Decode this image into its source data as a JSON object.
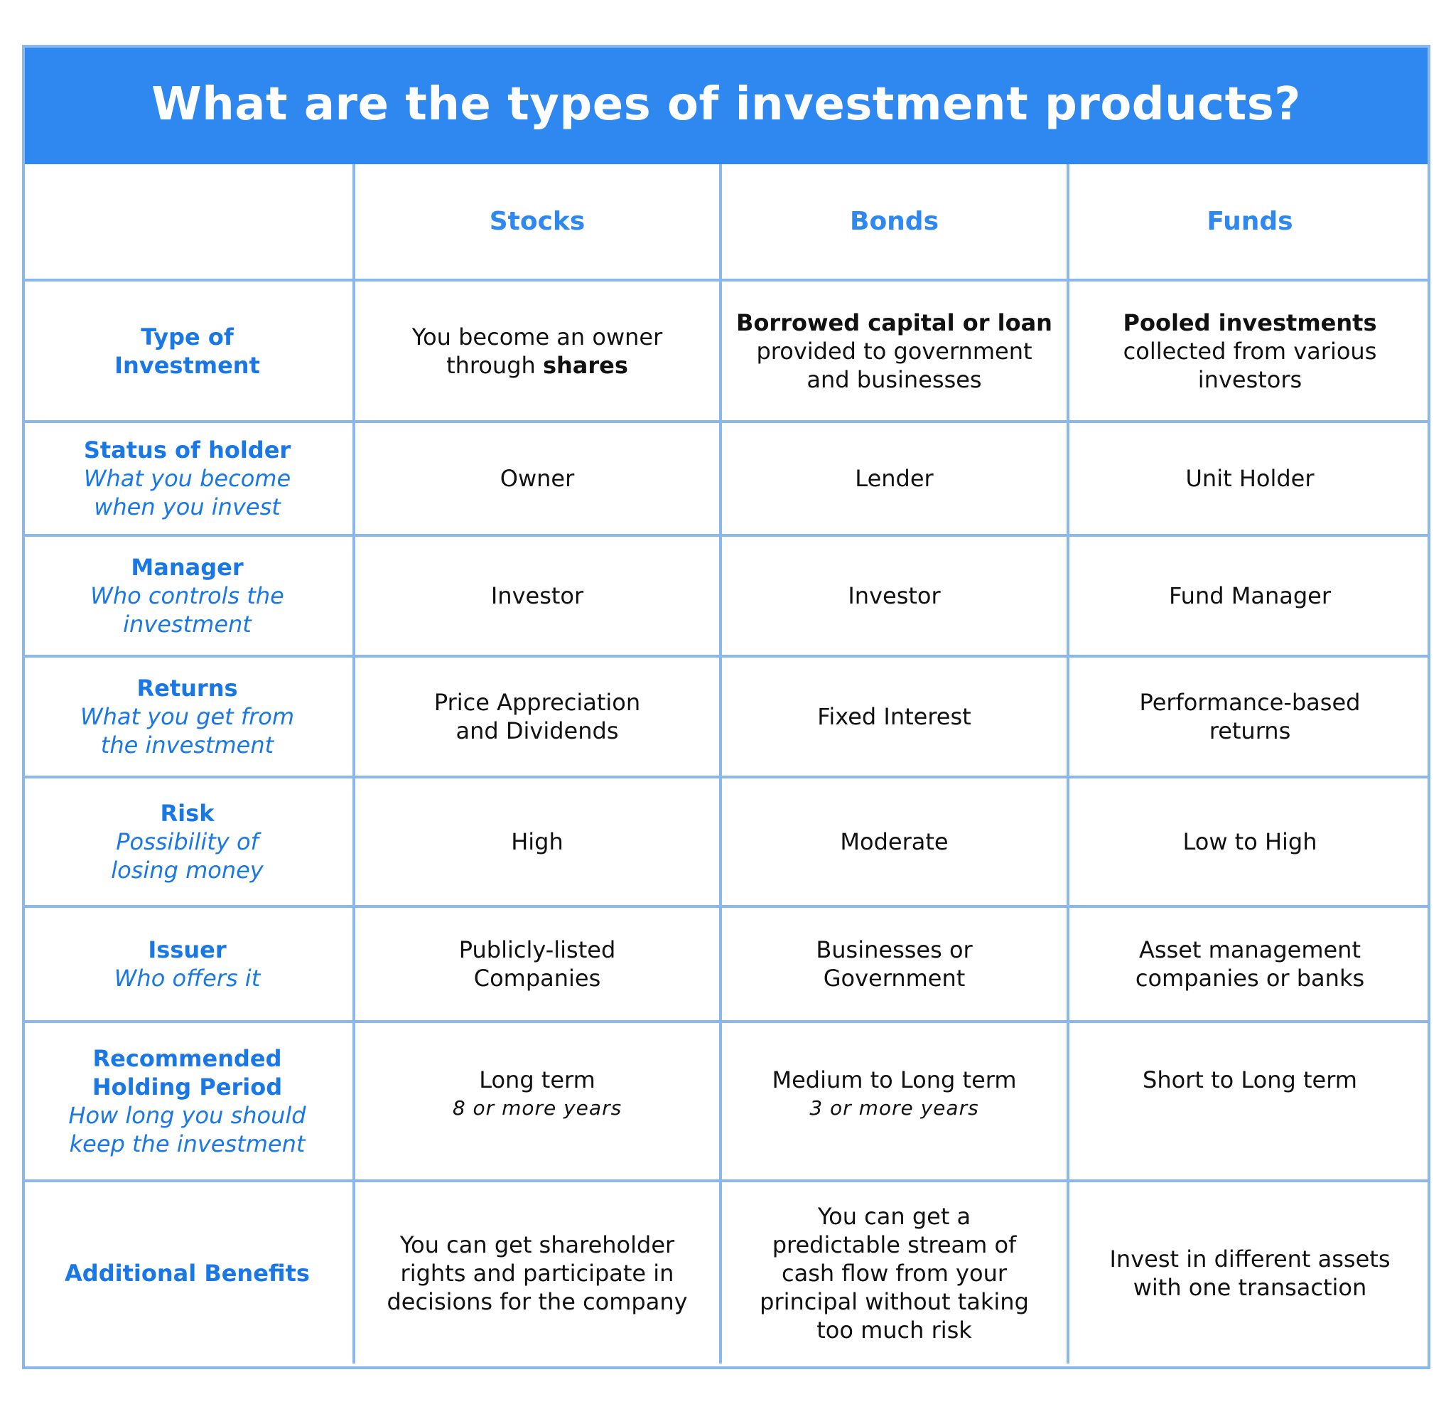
{
  "title": "What are the types of investment products?",
  "columns": [
    "Stocks",
    "Bonds",
    "Funds"
  ],
  "rows": [
    {
      "label": "Type of Investment",
      "sub": "",
      "cells": [
        {
          "pre": "You become an owner through ",
          "bold": "shares",
          "post": ""
        },
        {
          "bold": "Borrowed capital or loan",
          "post": "provided to government and businesses"
        },
        {
          "bold": "Pooled investments",
          "post": "collected from various investors"
        }
      ]
    },
    {
      "label": "Status of holder",
      "sub": "What you become when you invest",
      "cells": [
        {
          "text": "Owner"
        },
        {
          "text": "Lender"
        },
        {
          "text": "Unit Holder"
        }
      ]
    },
    {
      "label": "Manager",
      "sub": "Who controls the investment",
      "cells": [
        {
          "text": "Investor"
        },
        {
          "text": "Investor"
        },
        {
          "text": "Fund Manager"
        }
      ]
    },
    {
      "label": "Returns",
      "sub": "What you get from the investment",
      "cells": [
        {
          "text": "Price Appreciation and Dividends"
        },
        {
          "text": "Fixed Interest"
        },
        {
          "text": "Performance-based returns"
        }
      ]
    },
    {
      "label": "Risk",
      "sub": "Possibility of losing money",
      "cells": [
        {
          "text": "High"
        },
        {
          "text": "Moderate"
        },
        {
          "text": "Low to High"
        }
      ]
    },
    {
      "label": "Issuer",
      "sub": "Who offers it",
      "cells": [
        {
          "text": "Publicly-listed Companies"
        },
        {
          "text": "Businesses or Government"
        },
        {
          "text": "Asset management companies or banks"
        }
      ]
    },
    {
      "label": "Recommended Holding Period",
      "sub": "How long you should keep the investment",
      "cells": [
        {
          "text": "Long term",
          "note": "8 or more years"
        },
        {
          "text": "Medium to Long term",
          "note": "3 or more years"
        },
        {
          "text": "Short to Long term",
          "note": ""
        }
      ]
    },
    {
      "label": "Additional Benefits",
      "sub": "",
      "cells": [
        {
          "text": "You can get shareholder rights and participate in decisions for the company"
        },
        {
          "text": "You can get a predictable stream of cash flow from your principal without taking too much risk"
        },
        {
          "text": "Invest in different assets with one transaction"
        }
      ]
    }
  ]
}
